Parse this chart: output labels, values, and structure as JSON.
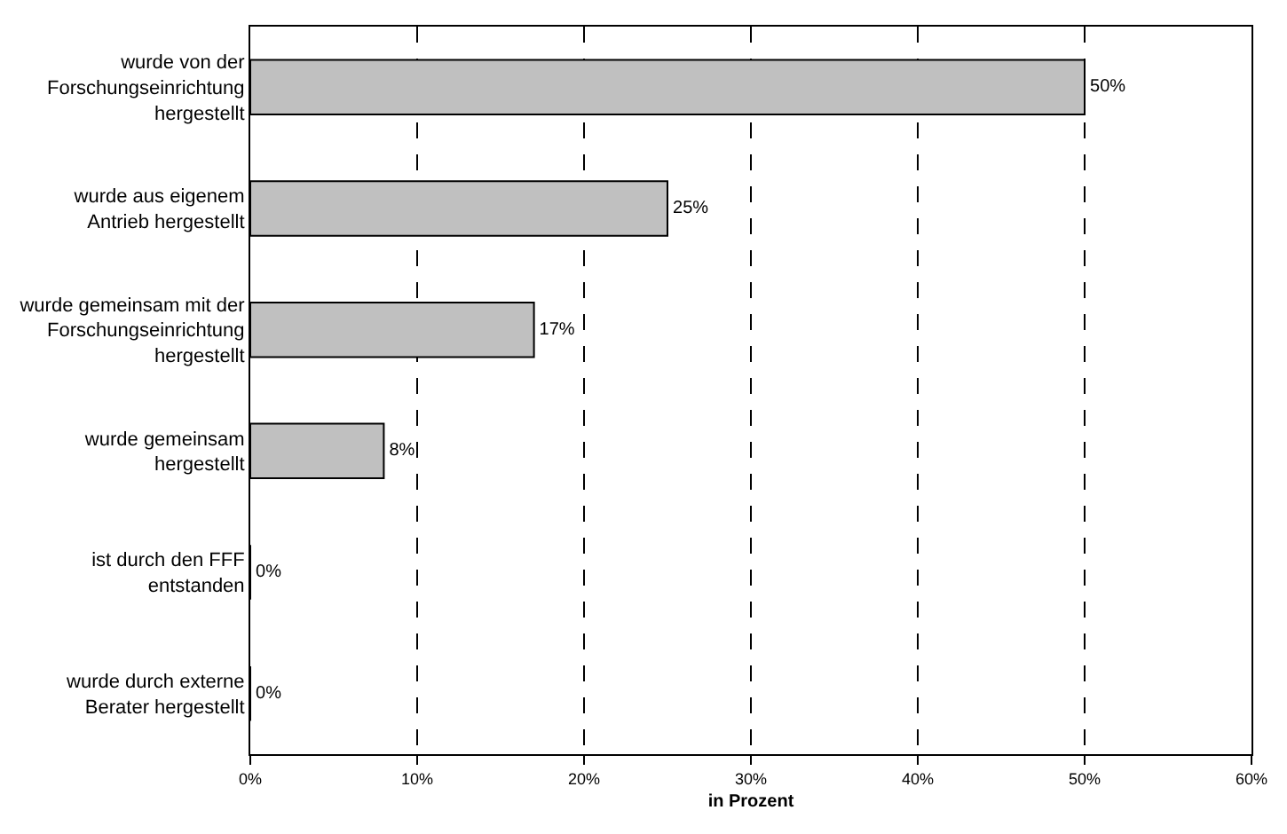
{
  "chart_data": {
    "type": "bar",
    "orientation": "horizontal",
    "xlabel": "in Prozent",
    "categories": [
      "wurde von der Forschungseinrichtung hergestellt",
      "wurde aus eigenem Antrieb hergestellt",
      "wurde gemeinsam mit der Forschungseinrichtung hergestellt",
      "wurde gemeinsam hergestellt",
      "ist durch den FFF entstanden",
      "wurde durch externe Berater hergestellt"
    ],
    "values": [
      50,
      25,
      17,
      8,
      0,
      0
    ],
    "value_labels": [
      "50%",
      "25%",
      "17%",
      "8%",
      "0%",
      "0%"
    ],
    "color": "#c0c0c0",
    "xlim": [
      0,
      60
    ],
    "xticks": [
      {
        "value": 0,
        "label": "0%"
      },
      {
        "value": 10,
        "label": "10%"
      },
      {
        "value": 20,
        "label": "20%"
      },
      {
        "value": 30,
        "label": "30%"
      },
      {
        "value": 40,
        "label": "40%"
      },
      {
        "value": 50,
        "label": "50%"
      },
      {
        "value": 60,
        "label": "60%"
      }
    ],
    "grid": "x",
    "legend": false
  }
}
